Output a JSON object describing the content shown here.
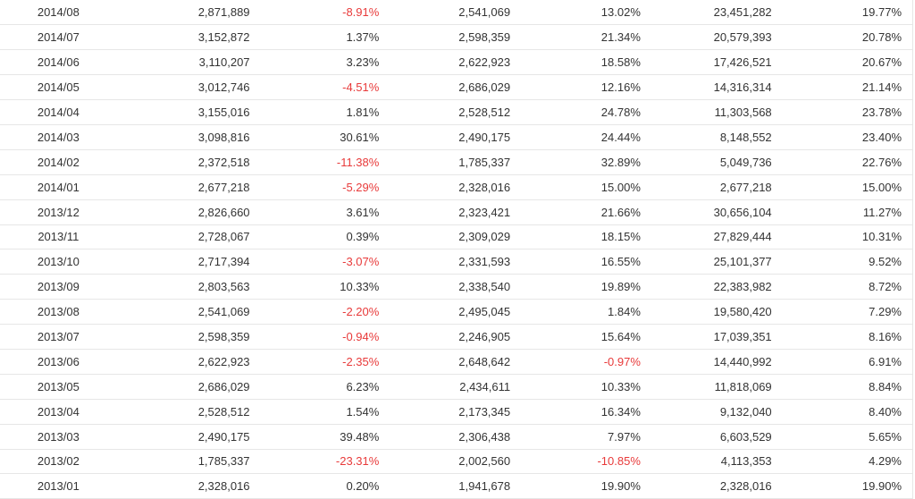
{
  "table": {
    "rows": [
      [
        "2014/08",
        "2,871,889",
        "-8.91%",
        "2,541,069",
        "13.02%",
        "23,451,282",
        "19.77%"
      ],
      [
        "2014/07",
        "3,152,872",
        "1.37%",
        "2,598,359",
        "21.34%",
        "20,579,393",
        "20.78%"
      ],
      [
        "2014/06",
        "3,110,207",
        "3.23%",
        "2,622,923",
        "18.58%",
        "17,426,521",
        "20.67%"
      ],
      [
        "2014/05",
        "3,012,746",
        "-4.51%",
        "2,686,029",
        "12.16%",
        "14,316,314",
        "21.14%"
      ],
      [
        "2014/04",
        "3,155,016",
        "1.81%",
        "2,528,512",
        "24.78%",
        "11,303,568",
        "23.78%"
      ],
      [
        "2014/03",
        "3,098,816",
        "30.61%",
        "2,490,175",
        "24.44%",
        "8,148,552",
        "23.40%"
      ],
      [
        "2014/02",
        "2,372,518",
        "-11.38%",
        "1,785,337",
        "32.89%",
        "5,049,736",
        "22.76%"
      ],
      [
        "2014/01",
        "2,677,218",
        "-5.29%",
        "2,328,016",
        "15.00%",
        "2,677,218",
        "15.00%"
      ],
      [
        "2013/12",
        "2,826,660",
        "3.61%",
        "2,323,421",
        "21.66%",
        "30,656,104",
        "11.27%"
      ],
      [
        "2013/11",
        "2,728,067",
        "0.39%",
        "2,309,029",
        "18.15%",
        "27,829,444",
        "10.31%"
      ],
      [
        "2013/10",
        "2,717,394",
        "-3.07%",
        "2,331,593",
        "16.55%",
        "25,101,377",
        "9.52%"
      ],
      [
        "2013/09",
        "2,803,563",
        "10.33%",
        "2,338,540",
        "19.89%",
        "22,383,982",
        "8.72%"
      ],
      [
        "2013/08",
        "2,541,069",
        "-2.20%",
        "2,495,045",
        "1.84%",
        "19,580,420",
        "7.29%"
      ],
      [
        "2013/07",
        "2,598,359",
        "-0.94%",
        "2,246,905",
        "15.64%",
        "17,039,351",
        "8.16%"
      ],
      [
        "2013/06",
        "2,622,923",
        "-2.35%",
        "2,648,642",
        "-0.97%",
        "14,440,992",
        "6.91%"
      ],
      [
        "2013/05",
        "2,686,029",
        "6.23%",
        "2,434,611",
        "10.33%",
        "11,818,069",
        "8.84%"
      ],
      [
        "2013/04",
        "2,528,512",
        "1.54%",
        "2,173,345",
        "16.34%",
        "9,132,040",
        "8.40%"
      ],
      [
        "2013/03",
        "2,490,175",
        "39.48%",
        "2,306,438",
        "7.97%",
        "6,603,529",
        "5.65%"
      ],
      [
        "2013/02",
        "1,785,337",
        "-23.31%",
        "2,002,560",
        "-10.85%",
        "4,113,353",
        "4.29%"
      ],
      [
        "2013/01",
        "2,328,016",
        "0.20%",
        "1,941,678",
        "19.90%",
        "2,328,016",
        "19.90%"
      ]
    ],
    "colors": {
      "text": "#333333",
      "negative": "#e83a3a",
      "border": "#e6e6e6"
    }
  }
}
